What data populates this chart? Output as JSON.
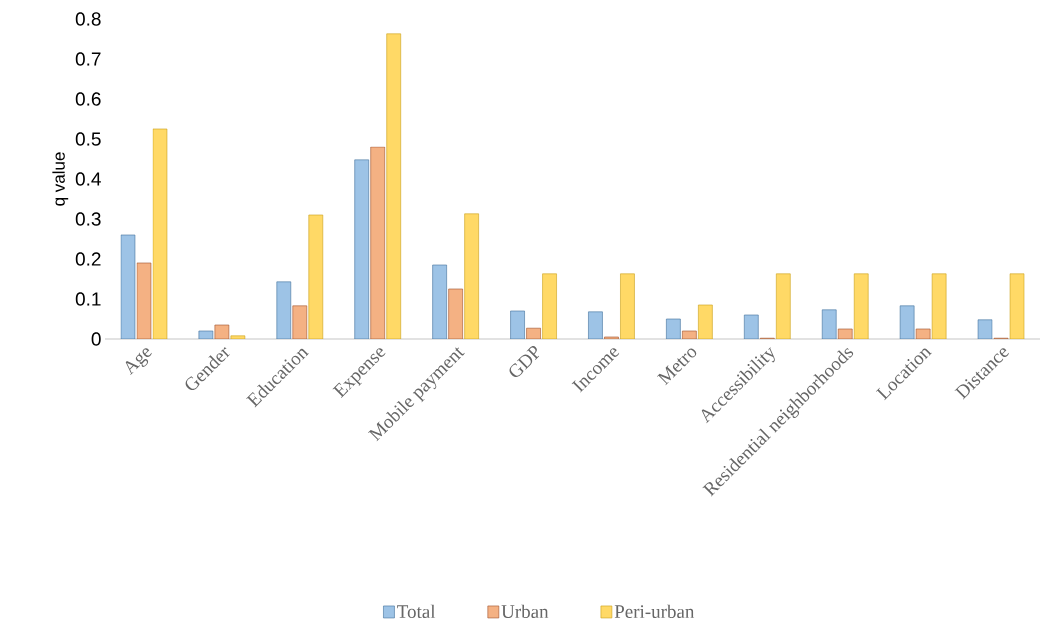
{
  "chart_data": {
    "type": "bar",
    "ylabel": "q value",
    "categories": [
      "Age",
      "Gender",
      "Education",
      "Expense",
      "Mobile payment",
      "GDP",
      "Income",
      "Metro",
      "Accessibility",
      "Residential neighborhoods",
      "Location",
      "Distance"
    ],
    "series": [
      {
        "name": "Total",
        "color": "#9dc3e6",
        "values": [
          0.26,
          0.02,
          0.143,
          0.448,
          0.185,
          0.07,
          0.068,
          0.05,
          0.06,
          0.073,
          0.083,
          0.048
        ]
      },
      {
        "name": "Urban",
        "color": "#f4b183",
        "values": [
          0.19,
          0.035,
          0.083,
          0.48,
          0.125,
          0.027,
          0.005,
          0.02,
          0.002,
          0.025,
          0.025,
          0.002
        ]
      },
      {
        "name": "Peri-urban",
        "color": "#ffd966",
        "values": [
          0.525,
          0.008,
          0.31,
          0.763,
          0.313,
          0.163,
          0.163,
          0.085,
          0.163,
          0.163,
          0.163,
          0.163
        ]
      }
    ],
    "ylim": [
      0,
      0.8
    ],
    "yticks": [
      0,
      0.1,
      0.2,
      0.3,
      0.4,
      0.5,
      0.6,
      0.7,
      0.8
    ],
    "grid": false,
    "legend": "bottom"
  }
}
